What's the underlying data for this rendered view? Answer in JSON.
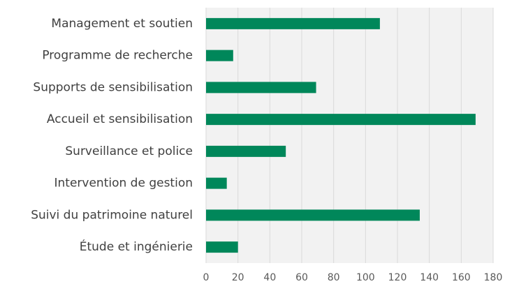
{
  "chart_data": {
    "type": "barh",
    "categories": [
      "Management et soutien",
      "Programme de recherche",
      "Supports de sensibilisation",
      "Accueil et sensibilisation",
      "Surveillance et police",
      "Intervention de gestion",
      "Suivi du patrimoine naturel",
      "Étude et ingénierie"
    ],
    "values": [
      109,
      17,
      69,
      169,
      50,
      13,
      134,
      20
    ],
    "color": "#00875a",
    "xlim": [
      0,
      180
    ],
    "xticks": [
      0,
      20,
      40,
      60,
      80,
      100,
      120,
      140,
      160,
      180
    ],
    "grid": true
  }
}
